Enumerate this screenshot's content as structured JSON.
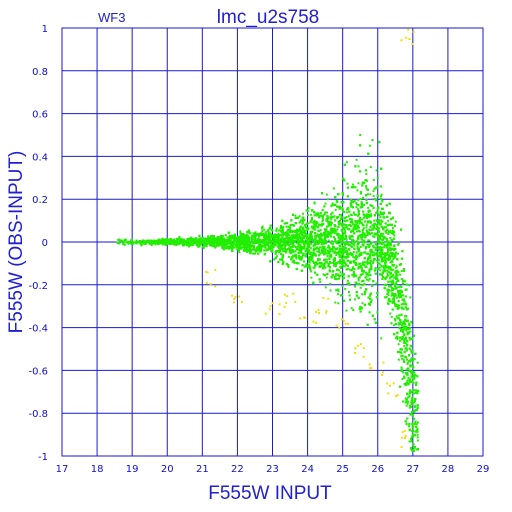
{
  "chart_data": {
    "type": "scatter",
    "title": "lmc_u2s758",
    "subtitle": "WF3",
    "xlabel": "F555W INPUT",
    "ylabel": "F555W (OBS-INPUT)",
    "xlim": [
      17,
      29
    ],
    "ylim": [
      -1,
      1
    ],
    "x_ticks": [
      17,
      18,
      19,
      20,
      21,
      22,
      23,
      24,
      25,
      26,
      27,
      28,
      29
    ],
    "y_ticks": [
      1,
      0.8,
      0.6,
      0.4,
      0.2,
      0,
      -0.2,
      -0.4,
      -0.6,
      -0.8,
      -1
    ],
    "grid": true,
    "colors": {
      "axis": "#1a1ad0",
      "text": "#1010c8",
      "series_main": "#22ee00",
      "series_secondary": "#f0e000"
    },
    "series": [
      {
        "color": "#22ee00",
        "description_points": [
          [
            18.6,
            0.01
          ],
          [
            18.8,
            0.005
          ],
          [
            19.2,
            0.0
          ],
          [
            19.6,
            0.005
          ],
          [
            20.0,
            0.0
          ],
          [
            20.5,
            0.005
          ],
          [
            21.0,
            0.0
          ],
          [
            21.5,
            0.005
          ],
          [
            22.0,
            0.0
          ],
          [
            22.5,
            -0.005
          ],
          [
            23.0,
            0.0
          ],
          [
            23.5,
            0.01
          ],
          [
            24.0,
            0.0
          ],
          [
            24.5,
            0.02
          ],
          [
            25.0,
            0.01
          ],
          [
            25.3,
            0.05
          ],
          [
            25.6,
            -0.05
          ],
          [
            25.9,
            0.1
          ],
          [
            26.0,
            -0.1
          ],
          [
            26.2,
            -0.2
          ],
          [
            26.4,
            -0.35
          ],
          [
            26.6,
            -0.55
          ],
          [
            26.8,
            -0.75
          ],
          [
            27.0,
            -0.9
          ],
          [
            25.5,
            0.5
          ],
          [
            25.8,
            0.35
          ],
          [
            26.0,
            0.3
          ],
          [
            24.8,
            0.15
          ],
          [
            24.2,
            -0.12
          ],
          [
            25.2,
            -0.25
          ],
          [
            26.1,
            -0.45
          ],
          [
            26.5,
            -0.3
          ],
          [
            26.7,
            -0.6
          ],
          [
            26.9,
            -0.85
          ]
        ]
      },
      {
        "color": "#f0e000",
        "description_points": [
          [
            21.3,
            -0.17
          ],
          [
            22.1,
            -0.25
          ],
          [
            23.0,
            -0.3
          ],
          [
            23.5,
            -0.28
          ],
          [
            24.0,
            -0.35
          ],
          [
            24.5,
            -0.3
          ],
          [
            25.0,
            -0.4
          ],
          [
            25.5,
            -0.5
          ],
          [
            26.0,
            -0.6
          ],
          [
            26.5,
            -0.7
          ],
          [
            26.9,
            -0.92
          ],
          [
            26.8,
            0.96
          ]
        ]
      }
    ]
  }
}
